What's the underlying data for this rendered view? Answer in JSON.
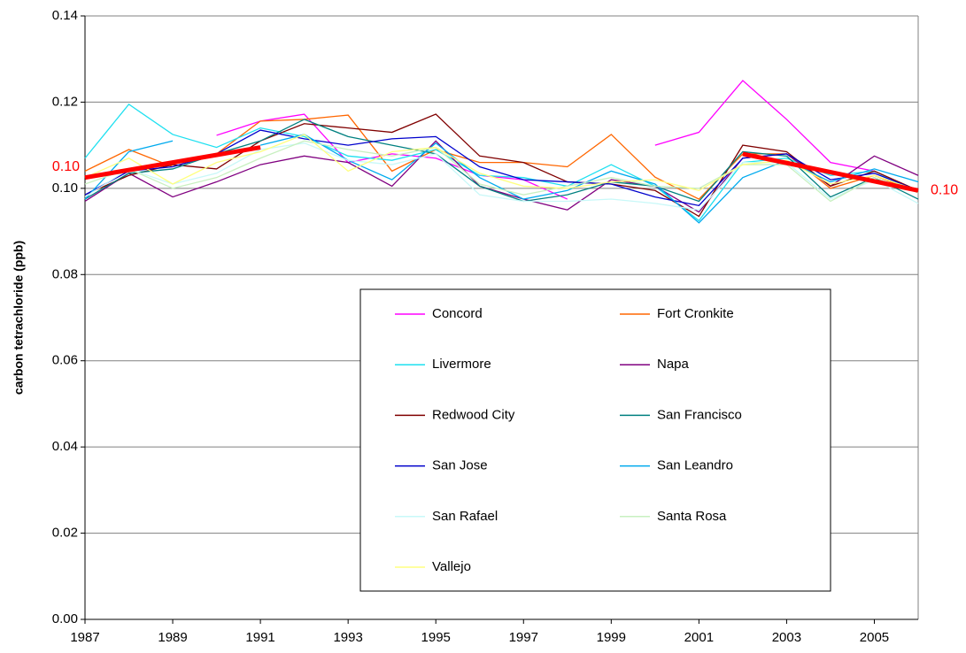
{
  "chart_data": {
    "type": "line",
    "y_label": "carbon tetrachloride (ppb)",
    "x": [
      1987,
      1988,
      1989,
      1990,
      1991,
      1992,
      1993,
      1994,
      1995,
      1996,
      1997,
      1998,
      1999,
      2000,
      2001,
      2002,
      2003,
      2004,
      2005,
      2006
    ],
    "xlim": [
      1987,
      2006
    ],
    "xticks": [
      1987,
      1989,
      1991,
      1993,
      1995,
      1997,
      1999,
      2001,
      2003,
      2005
    ],
    "ylim": [
      0,
      0.14
    ],
    "yticks": [
      {
        "value": 0,
        "label": "0.00"
      },
      {
        "value": 0.02,
        "label": "0.02"
      },
      {
        "value": 0.04,
        "label": "0.04"
      },
      {
        "value": 0.06,
        "label": "0.06"
      },
      {
        "value": 0.08,
        "label": "0.08"
      },
      {
        "value": 0.1,
        "label": "0.10"
      },
      {
        "value": 0.12,
        "label": "0.12"
      },
      {
        "value": 0.14,
        "label": "0.14"
      }
    ],
    "grid": true,
    "series": [
      {
        "name": "Concord",
        "color": "#ff00ff",
        "values": [
          null,
          null,
          null,
          0.1123,
          0.1156,
          0.1172,
          0.106,
          0.108,
          0.107,
          0.103,
          0.102,
          0.0975,
          null,
          0.11,
          0.113,
          0.125,
          0.116,
          0.106,
          0.104,
          null
        ]
      },
      {
        "name": "Fort Cronkite",
        "color": "#ff6600",
        "values": [
          0.104,
          0.109,
          0.105,
          0.108,
          0.1156,
          0.116,
          0.117,
          0.104,
          0.109,
          0.106,
          0.106,
          0.105,
          0.1125,
          0.1026,
          0.0975,
          0.108,
          0.108,
          0.1,
          0.103,
          0.099
        ]
      },
      {
        "name": "Livermore",
        "color": "#1ee0f0",
        "values": [
          0.107,
          0.1195,
          0.1125,
          0.1095,
          0.114,
          0.112,
          0.1075,
          0.1065,
          0.109,
          0.103,
          0.1025,
          0.1005,
          0.1055,
          0.1005,
          0.0925,
          0.106,
          0.107,
          0.103,
          0.104,
          0.099
        ]
      },
      {
        "name": "Napa",
        "color": "#800080",
        "values": [
          0.097,
          0.1035,
          0.098,
          0.1015,
          0.1055,
          0.1075,
          0.106,
          0.1005,
          0.111,
          0.1005,
          0.0975,
          0.095,
          0.102,
          0.1005,
          0.0945,
          0.107,
          0.108,
          0.1005,
          0.1075,
          0.103
        ]
      },
      {
        "name": "Redwood City",
        "color": "#800000",
        "values": [
          0.0985,
          0.103,
          0.1055,
          0.1045,
          0.111,
          0.115,
          0.114,
          0.113,
          0.1172,
          0.1075,
          0.106,
          0.1015,
          0.101,
          0.0995,
          0.0935,
          0.11,
          0.1085,
          0.1005,
          0.104,
          0.0995
        ]
      },
      {
        "name": "San Francisco",
        "color": "#008080",
        "values": [
          0.0975,
          0.1035,
          0.1045,
          0.108,
          0.111,
          0.116,
          0.112,
          0.11,
          0.108,
          0.1005,
          0.097,
          0.0985,
          0.1015,
          0.1005,
          0.097,
          0.1085,
          0.1075,
          0.098,
          0.1025,
          0.0975
        ]
      },
      {
        "name": "San Jose",
        "color": "#0000cc",
        "values": [
          0.0985,
          0.104,
          0.105,
          0.108,
          0.1135,
          0.1115,
          0.11,
          0.1115,
          0.112,
          0.105,
          0.102,
          0.1015,
          0.101,
          0.098,
          0.096,
          0.107,
          0.108,
          0.102,
          0.1035,
          0.0995
        ]
      },
      {
        "name": "San Leandro",
        "color": "#00aaee",
        "values": [
          0.0975,
          0.1085,
          0.111,
          null,
          0.11,
          0.1125,
          0.1065,
          0.102,
          0.1105,
          0.1025,
          0.0975,
          0.0995,
          0.104,
          0.101,
          0.092,
          0.1025,
          0.1065,
          0.1015,
          0.1045,
          0.1015
        ]
      },
      {
        "name": "San Rafael",
        "color": "#c8f8f8",
        "values": [
          0.098,
          0.1045,
          0.101,
          0.1035,
          0.109,
          0.1105,
          0.1065,
          0.1055,
          0.108,
          0.0985,
          0.097,
          0.097,
          0.0975,
          0.0965,
          0.095,
          0.106,
          0.106,
          0.0975,
          0.102,
          0.0965
        ]
      },
      {
        "name": "Santa Rosa",
        "color": "#c8f0c0",
        "values": [
          0.101,
          0.1045,
          0.1,
          0.1025,
          0.107,
          0.111,
          0.109,
          0.1075,
          0.1095,
          0.101,
          0.0985,
          0.1005,
          0.1025,
          0.1005,
          0.1,
          0.1055,
          0.1055,
          0.097,
          0.1025,
          0.099
        ]
      },
      {
        "name": "Vallejo",
        "color": "#ffff80",
        "values": [
          0.1025,
          0.107,
          0.101,
          0.106,
          0.1085,
          0.1125,
          0.104,
          0.1085,
          0.1095,
          0.1035,
          0.1005,
          0.1,
          0.1015,
          0.102,
          0.0995,
          0.1055,
          0.1065,
          0.101,
          0.103,
          0.0995
        ]
      }
    ],
    "trendlines": [
      {
        "color": "#ff0000",
        "x": [
          1987,
          1991
        ],
        "values": [
          0.1025,
          0.1095
        ],
        "label": "0.10",
        "label_at": "start"
      },
      {
        "color": "#ff0000",
        "x": [
          2002,
          2006
        ],
        "values": [
          0.108,
          0.0995
        ],
        "label": "0.10",
        "label_at": "end"
      }
    ]
  }
}
